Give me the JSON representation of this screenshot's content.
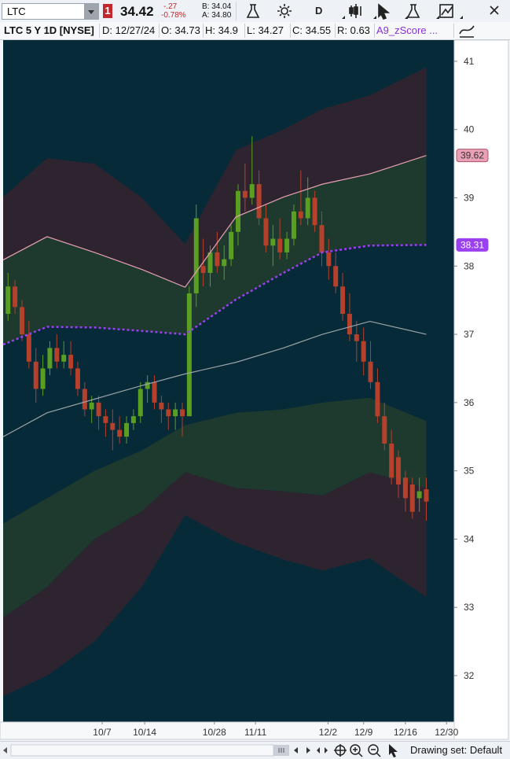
{
  "toolbar": {
    "symbol": "LTC",
    "alerts": "1",
    "last": "34.42",
    "change": "-.27",
    "change_pct": "-0.78%",
    "bid": "B: 34.04",
    "ask": "A: 34.80",
    "period_button": "D"
  },
  "info_bar": {
    "title": "LTC 5 Y 1D [NYSE]",
    "date": "D: 12/27/24",
    "open": "O: 34.73",
    "high": "H: 34.9",
    "low": "L: 34.27",
    "close": "C: 34.55",
    "range": "R: 0.63",
    "study": "A9_zScore ..."
  },
  "footer": {
    "drawing_set": "Drawing set: Default"
  },
  "chart_data": {
    "type": "candlestick",
    "up_color": "#5a9e22",
    "down_color": "#b5402c",
    "background": "#062a38",
    "open": [
      37.3,
      37.7,
      37.4,
      37.0,
      36.6,
      36.2,
      36.5,
      36.8,
      36.6,
      36.7,
      36.5,
      36.2,
      35.9,
      36.0,
      35.8,
      35.7,
      35.6,
      35.5,
      35.7,
      35.8,
      36.2,
      36.3,
      36.0,
      35.9,
      35.8,
      35.9,
      35.8,
      37.6,
      38.0,
      37.9,
      38.2,
      38.0,
      38.1,
      38.5,
      39.1,
      39.0,
      39.2,
      38.7,
      38.3,
      38.4,
      38.2,
      38.4,
      38.8,
      38.7,
      39.0,
      38.6,
      38.2,
      38.0,
      37.7,
      37.3,
      37.0,
      36.9,
      36.6,
      36.3,
      35.8,
      35.4,
      35.2,
      34.9,
      34.8,
      34.6,
      34.73
    ],
    "high": [
      37.9,
      37.8,
      37.5,
      37.2,
      36.8,
      36.7,
      36.9,
      37.0,
      36.9,
      36.9,
      36.6,
      36.3,
      36.1,
      36.1,
      35.9,
      35.9,
      35.8,
      35.8,
      35.9,
      36.3,
      36.4,
      36.4,
      36.1,
      36.0,
      36.0,
      36.0,
      37.7,
      38.9,
      38.4,
      38.3,
      38.5,
      38.3,
      38.6,
      39.2,
      39.5,
      39.9,
      39.4,
      38.9,
      38.6,
      38.7,
      38.5,
      38.9,
      39.4,
      39.3,
      39.1,
      38.8,
      38.4,
      38.2,
      37.9,
      37.6,
      37.2,
      37.1,
      36.9,
      36.5,
      36.0,
      35.6,
      35.3,
      35.0,
      34.9,
      34.9,
      34.9
    ],
    "low": [
      37.2,
      37.3,
      36.9,
      36.5,
      36.0,
      36.1,
      36.4,
      36.5,
      36.5,
      36.4,
      36.1,
      35.8,
      35.7,
      35.6,
      35.5,
      35.3,
      35.4,
      35.4,
      35.6,
      35.7,
      36.0,
      35.9,
      35.7,
      35.6,
      35.6,
      35.5,
      35.8,
      37.4,
      37.7,
      37.7,
      37.9,
      37.8,
      38.0,
      38.3,
      38.8,
      38.9,
      38.6,
      38.2,
      38.0,
      38.1,
      38.1,
      38.3,
      38.6,
      38.6,
      38.5,
      38.0,
      37.8,
      37.6,
      37.2,
      36.9,
      36.6,
      36.4,
      36.2,
      35.7,
      35.3,
      34.8,
      34.6,
      34.4,
      34.3,
      34.4,
      34.27
    ],
    "close": [
      37.7,
      37.4,
      37.0,
      36.6,
      36.2,
      36.5,
      36.8,
      36.6,
      36.7,
      36.5,
      36.2,
      35.9,
      36.0,
      35.8,
      35.7,
      35.6,
      35.5,
      35.7,
      35.8,
      36.2,
      36.3,
      36.0,
      35.9,
      35.8,
      35.9,
      35.8,
      37.6,
      38.7,
      37.9,
      38.2,
      38.0,
      38.1,
      38.5,
      39.1,
      39.0,
      39.2,
      38.7,
      38.3,
      38.4,
      38.2,
      38.4,
      38.8,
      38.7,
      39.0,
      38.6,
      38.2,
      38.0,
      37.7,
      37.3,
      37.0,
      36.9,
      36.6,
      36.3,
      35.8,
      35.4,
      34.9,
      34.8,
      34.6,
      34.4,
      34.7,
      34.55
    ],
    "xlim": [
      -0.7,
      64.0
    ],
    "xticks": [
      {
        "value": 13.5,
        "label": "10/7"
      },
      {
        "value": 19.6,
        "label": "10/14"
      },
      {
        "value": 29.6,
        "label": "10/28"
      },
      {
        "value": 35.5,
        "label": "11/11"
      },
      {
        "value": 45.9,
        "label": "12/2"
      },
      {
        "value": 51.0,
        "label": "12/9"
      },
      {
        "value": 57.0,
        "label": "12/16"
      },
      {
        "value": 62.9,
        "label": "12/30"
      }
    ],
    "ylim": [
      31.32,
      41.31
    ],
    "yticks": [
      32,
      33,
      34,
      35,
      36,
      37,
      38,
      39,
      40,
      41
    ],
    "bands": {
      "x": [
        -0.7,
        5.6,
        12.4,
        19.2,
        25.4,
        32.7,
        39.5,
        45.1,
        51.9,
        60
      ],
      "lines": [
        {
          "values": [
            39.01,
            39.58,
            39.5,
            39.0,
            38.32,
            39.7,
            40.0,
            40.3,
            40.5,
            40.91
          ]
        },
        {
          "values": [
            38.09,
            38.43,
            38.2,
            37.95,
            37.69,
            38.72,
            39.01,
            39.2,
            39.35,
            39.62
          ],
          "color": "#e8a0b4",
          "show_last": true
        },
        {
          "values": [
            36.85,
            37.11,
            37.1,
            37.05,
            37.0,
            37.51,
            37.9,
            38.2,
            38.3,
            38.31
          ],
          "color": "#9b40f0",
          "style": "dotted",
          "show_last": true
        },
        {
          "values": [
            35.5,
            35.85,
            36.05,
            36.25,
            36.42,
            36.59,
            36.8,
            37.0,
            37.19,
            37.0
          ],
          "color": "#9aa4a8"
        },
        {
          "values": [
            34.23,
            34.6,
            35.0,
            35.3,
            35.67,
            35.85,
            35.9,
            36.0,
            36.07,
            35.73
          ]
        },
        {
          "values": [
            32.85,
            33.3,
            34.0,
            34.41,
            34.98,
            34.75,
            34.7,
            34.64,
            34.98,
            34.75
          ]
        },
        {
          "values": [
            31.7,
            32.0,
            32.5,
            33.3,
            34.35,
            33.95,
            33.7,
            33.54,
            33.72,
            33.15
          ]
        }
      ],
      "fills": [
        "#2e2430",
        "#1e3a2e",
        "#062a38",
        "#062a38",
        "#1e3a2e",
        "#2e2430"
      ]
    }
  }
}
